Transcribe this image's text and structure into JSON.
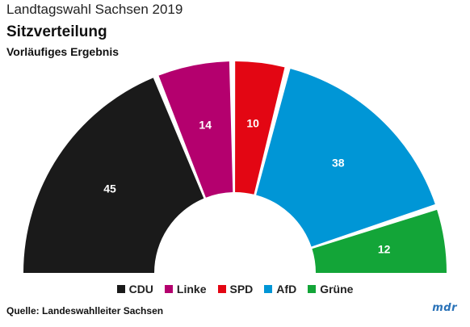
{
  "header": {
    "kicker": "Landtagswahl Sachsen 2019",
    "title": "Sitzverteilung",
    "subtitle": "Vorläufiges Ergebnis"
  },
  "chart_data": {
    "type": "pie",
    "subtype": "parliament-semicircle",
    "categories": [
      "CDU",
      "Linke",
      "SPD",
      "AfD",
      "Grüne"
    ],
    "values": [
      45,
      14,
      10,
      38,
      12
    ],
    "colors": [
      "#1a1a1a",
      "#b4006e",
      "#e30613",
      "#0096d6",
      "#13a538"
    ],
    "legend_position": "bottom",
    "title": "Sitzverteilung",
    "subtitle": "Vorläufiges Ergebnis"
  },
  "footer": {
    "source": "Quelle: Landeswahlleiter Sachsen",
    "logo": "mdr"
  }
}
